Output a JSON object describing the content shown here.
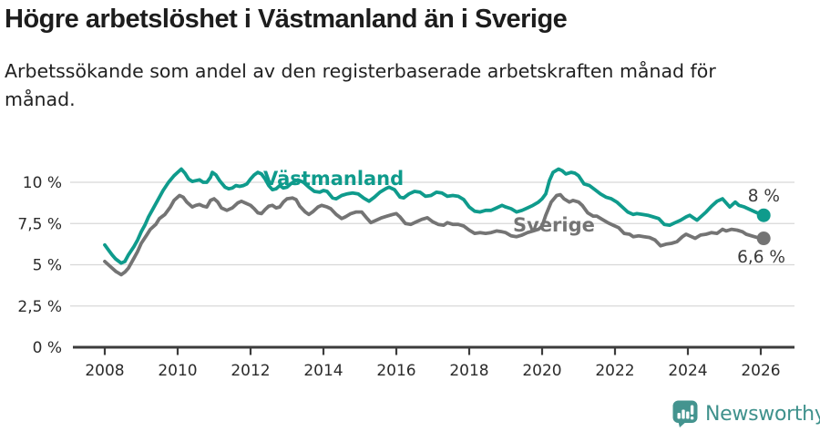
{
  "header": {
    "title": "Högre arbetslöshet i Västmanland än i Sverige",
    "subtitle": "Arbetssökande som andel av den registerbaserade arbetskraften månad för månad."
  },
  "chart_data": {
    "type": "line",
    "title": "Högre arbetslöshet i Västmanland än i Sverige",
    "subtitle": "Arbetssökande som andel av den registerbaserade arbetskraften månad för månad.",
    "unit": "%",
    "x_axis": {
      "ticks": [
        2008,
        2010,
        2012,
        2014,
        2016,
        2018,
        2020,
        2022,
        2024,
        2026
      ],
      "range": [
        2007.05,
        2026.9
      ]
    },
    "y_axis": {
      "ticks": [
        0,
        2.5,
        5,
        7.5,
        10
      ],
      "tick_labels": [
        "0 %",
        "2,5 %",
        "5 %",
        "7,5 %",
        "10 %"
      ],
      "range": [
        0,
        11.3
      ],
      "grid": true
    },
    "colors": {
      "grid": "#d8d8d8",
      "axis": "#3c3c3c",
      "tick_text": "#2b2b2b",
      "end_label_text": "#3a3a3a"
    },
    "series": [
      {
        "name": "Västmanland",
        "color": "#0f9b8c",
        "end_label": "8 %",
        "last_value": 8.0,
        "points": [
          [
            2008.0,
            6.2
          ],
          [
            2008.1,
            5.9
          ],
          [
            2008.2,
            5.6
          ],
          [
            2008.3,
            5.35
          ],
          [
            2008.45,
            5.1
          ],
          [
            2008.55,
            5.2
          ],
          [
            2008.65,
            5.6
          ],
          [
            2008.8,
            6.1
          ],
          [
            2008.9,
            6.5
          ],
          [
            2009.0,
            7.0
          ],
          [
            2009.1,
            7.4
          ],
          [
            2009.2,
            7.9
          ],
          [
            2009.3,
            8.3
          ],
          [
            2009.45,
            8.9
          ],
          [
            2009.6,
            9.5
          ],
          [
            2009.75,
            10.0
          ],
          [
            2009.9,
            10.4
          ],
          [
            2010.0,
            10.6
          ],
          [
            2010.1,
            10.8
          ],
          [
            2010.2,
            10.55
          ],
          [
            2010.3,
            10.2
          ],
          [
            2010.4,
            10.05
          ],
          [
            2010.5,
            10.1
          ],
          [
            2010.6,
            10.15
          ],
          [
            2010.7,
            10.0
          ],
          [
            2010.8,
            10.0
          ],
          [
            2010.9,
            10.3
          ],
          [
            2010.95,
            10.6
          ],
          [
            2011.05,
            10.45
          ],
          [
            2011.15,
            10.1
          ],
          [
            2011.3,
            9.7
          ],
          [
            2011.4,
            9.6
          ],
          [
            2011.5,
            9.65
          ],
          [
            2011.6,
            9.8
          ],
          [
            2011.7,
            9.75
          ],
          [
            2011.8,
            9.8
          ],
          [
            2011.9,
            9.9
          ],
          [
            2012.0,
            10.2
          ],
          [
            2012.1,
            10.45
          ],
          [
            2012.2,
            10.6
          ],
          [
            2012.3,
            10.5
          ],
          [
            2012.4,
            10.2
          ],
          [
            2012.5,
            9.8
          ],
          [
            2012.6,
            9.55
          ],
          [
            2012.7,
            9.6
          ],
          [
            2012.8,
            9.8
          ],
          [
            2012.9,
            9.65
          ],
          [
            2013.0,
            9.7
          ],
          [
            2013.1,
            9.9
          ],
          [
            2013.2,
            10.05
          ],
          [
            2013.3,
            10.15
          ],
          [
            2013.45,
            10.0
          ],
          [
            2013.6,
            9.7
          ],
          [
            2013.75,
            9.45
          ],
          [
            2013.9,
            9.4
          ],
          [
            2014.0,
            9.5
          ],
          [
            2014.1,
            9.45
          ],
          [
            2014.25,
            9.05
          ],
          [
            2014.35,
            9.0
          ],
          [
            2014.5,
            9.2
          ],
          [
            2014.65,
            9.3
          ],
          [
            2014.8,
            9.35
          ],
          [
            2014.95,
            9.3
          ],
          [
            2015.1,
            9.05
          ],
          [
            2015.25,
            8.85
          ],
          [
            2015.4,
            9.1
          ],
          [
            2015.55,
            9.4
          ],
          [
            2015.7,
            9.6
          ],
          [
            2015.8,
            9.7
          ],
          [
            2015.95,
            9.55
          ],
          [
            2016.1,
            9.1
          ],
          [
            2016.2,
            9.05
          ],
          [
            2016.35,
            9.3
          ],
          [
            2016.5,
            9.45
          ],
          [
            2016.65,
            9.4
          ],
          [
            2016.8,
            9.15
          ],
          [
            2016.95,
            9.2
          ],
          [
            2017.1,
            9.4
          ],
          [
            2017.25,
            9.35
          ],
          [
            2017.4,
            9.15
          ],
          [
            2017.55,
            9.2
          ],
          [
            2017.7,
            9.15
          ],
          [
            2017.85,
            8.95
          ],
          [
            2018.0,
            8.5
          ],
          [
            2018.15,
            8.25
          ],
          [
            2018.3,
            8.2
          ],
          [
            2018.45,
            8.3
          ],
          [
            2018.6,
            8.3
          ],
          [
            2018.75,
            8.45
          ],
          [
            2018.9,
            8.6
          ],
          [
            2019.0,
            8.5
          ],
          [
            2019.15,
            8.4
          ],
          [
            2019.3,
            8.2
          ],
          [
            2019.45,
            8.3
          ],
          [
            2019.6,
            8.45
          ],
          [
            2019.75,
            8.6
          ],
          [
            2019.9,
            8.8
          ],
          [
            2020.0,
            9.0
          ],
          [
            2020.1,
            9.3
          ],
          [
            2020.2,
            10.1
          ],
          [
            2020.3,
            10.6
          ],
          [
            2020.45,
            10.8
          ],
          [
            2020.55,
            10.7
          ],
          [
            2020.65,
            10.5
          ],
          [
            2020.8,
            10.6
          ],
          [
            2020.9,
            10.55
          ],
          [
            2021.0,
            10.4
          ],
          [
            2021.15,
            9.9
          ],
          [
            2021.3,
            9.8
          ],
          [
            2021.45,
            9.55
          ],
          [
            2021.6,
            9.3
          ],
          [
            2021.75,
            9.1
          ],
          [
            2021.9,
            9.0
          ],
          [
            2022.05,
            8.8
          ],
          [
            2022.2,
            8.5
          ],
          [
            2022.35,
            8.2
          ],
          [
            2022.5,
            8.05
          ],
          [
            2022.6,
            8.1
          ],
          [
            2022.75,
            8.05
          ],
          [
            2022.9,
            8.0
          ],
          [
            2023.05,
            7.9
          ],
          [
            2023.2,
            7.8
          ],
          [
            2023.35,
            7.45
          ],
          [
            2023.5,
            7.4
          ],
          [
            2023.65,
            7.55
          ],
          [
            2023.8,
            7.7
          ],
          [
            2023.95,
            7.9
          ],
          [
            2024.05,
            8.0
          ],
          [
            2024.15,
            7.85
          ],
          [
            2024.25,
            7.7
          ],
          [
            2024.35,
            7.9
          ],
          [
            2024.5,
            8.2
          ],
          [
            2024.65,
            8.55
          ],
          [
            2024.8,
            8.85
          ],
          [
            2024.95,
            9.0
          ],
          [
            2025.05,
            8.75
          ],
          [
            2025.15,
            8.5
          ],
          [
            2025.3,
            8.8
          ],
          [
            2025.4,
            8.6
          ],
          [
            2025.55,
            8.5
          ],
          [
            2025.7,
            8.35
          ],
          [
            2025.85,
            8.2
          ],
          [
            2025.95,
            8.1
          ],
          [
            2026.08,
            8.0
          ]
        ]
      },
      {
        "name": "Sverige",
        "color": "#747474",
        "end_label": "6,6 %",
        "last_value": 6.6,
        "points": [
          [
            2008.0,
            5.2
          ],
          [
            2008.1,
            5.0
          ],
          [
            2008.2,
            4.8
          ],
          [
            2008.3,
            4.6
          ],
          [
            2008.45,
            4.4
          ],
          [
            2008.55,
            4.55
          ],
          [
            2008.65,
            4.8
          ],
          [
            2008.8,
            5.4
          ],
          [
            2008.9,
            5.8
          ],
          [
            2009.0,
            6.3
          ],
          [
            2009.15,
            6.8
          ],
          [
            2009.25,
            7.15
          ],
          [
            2009.4,
            7.45
          ],
          [
            2009.5,
            7.8
          ],
          [
            2009.65,
            8.05
          ],
          [
            2009.8,
            8.5
          ],
          [
            2009.9,
            8.9
          ],
          [
            2010.0,
            9.1
          ],
          [
            2010.05,
            9.2
          ],
          [
            2010.15,
            9.1
          ],
          [
            2010.25,
            8.8
          ],
          [
            2010.4,
            8.5
          ],
          [
            2010.5,
            8.6
          ],
          [
            2010.6,
            8.65
          ],
          [
            2010.7,
            8.55
          ],
          [
            2010.8,
            8.5
          ],
          [
            2010.9,
            8.9
          ],
          [
            2011.0,
            9.0
          ],
          [
            2011.1,
            8.8
          ],
          [
            2011.2,
            8.45
          ],
          [
            2011.35,
            8.3
          ],
          [
            2011.5,
            8.45
          ],
          [
            2011.65,
            8.75
          ],
          [
            2011.75,
            8.85
          ],
          [
            2011.85,
            8.75
          ],
          [
            2012.0,
            8.6
          ],
          [
            2012.1,
            8.4
          ],
          [
            2012.2,
            8.15
          ],
          [
            2012.3,
            8.1
          ],
          [
            2012.4,
            8.35
          ],
          [
            2012.5,
            8.55
          ],
          [
            2012.6,
            8.6
          ],
          [
            2012.7,
            8.45
          ],
          [
            2012.8,
            8.5
          ],
          [
            2012.9,
            8.8
          ],
          [
            2013.0,
            9.0
          ],
          [
            2013.15,
            9.05
          ],
          [
            2013.25,
            8.95
          ],
          [
            2013.35,
            8.55
          ],
          [
            2013.5,
            8.2
          ],
          [
            2013.6,
            8.05
          ],
          [
            2013.7,
            8.2
          ],
          [
            2013.85,
            8.5
          ],
          [
            2013.95,
            8.6
          ],
          [
            2014.1,
            8.5
          ],
          [
            2014.2,
            8.4
          ],
          [
            2014.35,
            8.05
          ],
          [
            2014.5,
            7.8
          ],
          [
            2014.6,
            7.9
          ],
          [
            2014.75,
            8.1
          ],
          [
            2014.9,
            8.2
          ],
          [
            2015.05,
            8.2
          ],
          [
            2015.2,
            7.8
          ],
          [
            2015.3,
            7.55
          ],
          [
            2015.45,
            7.7
          ],
          [
            2015.6,
            7.85
          ],
          [
            2015.75,
            7.95
          ],
          [
            2015.9,
            8.05
          ],
          [
            2016.0,
            8.1
          ],
          [
            2016.1,
            7.9
          ],
          [
            2016.25,
            7.5
          ],
          [
            2016.4,
            7.45
          ],
          [
            2016.55,
            7.6
          ],
          [
            2016.7,
            7.75
          ],
          [
            2016.85,
            7.85
          ],
          [
            2017.0,
            7.6
          ],
          [
            2017.15,
            7.45
          ],
          [
            2017.3,
            7.4
          ],
          [
            2017.4,
            7.55
          ],
          [
            2017.55,
            7.45
          ],
          [
            2017.7,
            7.45
          ],
          [
            2017.85,
            7.35
          ],
          [
            2018.0,
            7.1
          ],
          [
            2018.15,
            6.9
          ],
          [
            2018.3,
            6.95
          ],
          [
            2018.45,
            6.9
          ],
          [
            2018.6,
            6.95
          ],
          [
            2018.75,
            7.05
          ],
          [
            2018.9,
            7.0
          ],
          [
            2019.0,
            6.95
          ],
          [
            2019.15,
            6.75
          ],
          [
            2019.3,
            6.7
          ],
          [
            2019.45,
            6.8
          ],
          [
            2019.6,
            6.95
          ],
          [
            2019.75,
            7.05
          ],
          [
            2019.9,
            7.15
          ],
          [
            2020.0,
            7.35
          ],
          [
            2020.1,
            8.0
          ],
          [
            2020.25,
            8.8
          ],
          [
            2020.4,
            9.2
          ],
          [
            2020.5,
            9.25
          ],
          [
            2020.6,
            9.0
          ],
          [
            2020.75,
            8.8
          ],
          [
            2020.85,
            8.9
          ],
          [
            2021.0,
            8.8
          ],
          [
            2021.1,
            8.6
          ],
          [
            2021.25,
            8.15
          ],
          [
            2021.4,
            7.95
          ],
          [
            2021.5,
            7.95
          ],
          [
            2021.65,
            7.75
          ],
          [
            2021.8,
            7.55
          ],
          [
            2021.95,
            7.4
          ],
          [
            2022.1,
            7.25
          ],
          [
            2022.25,
            6.9
          ],
          [
            2022.4,
            6.85
          ],
          [
            2022.5,
            6.7
          ],
          [
            2022.65,
            6.75
          ],
          [
            2022.8,
            6.7
          ],
          [
            2022.95,
            6.65
          ],
          [
            2023.1,
            6.5
          ],
          [
            2023.25,
            6.15
          ],
          [
            2023.4,
            6.25
          ],
          [
            2023.55,
            6.3
          ],
          [
            2023.7,
            6.4
          ],
          [
            2023.85,
            6.7
          ],
          [
            2023.95,
            6.85
          ],
          [
            2024.1,
            6.7
          ],
          [
            2024.2,
            6.6
          ],
          [
            2024.35,
            6.8
          ],
          [
            2024.5,
            6.85
          ],
          [
            2024.65,
            6.95
          ],
          [
            2024.8,
            6.9
          ],
          [
            2024.95,
            7.15
          ],
          [
            2025.05,
            7.05
          ],
          [
            2025.2,
            7.15
          ],
          [
            2025.35,
            7.1
          ],
          [
            2025.5,
            7.0
          ],
          [
            2025.6,
            6.85
          ],
          [
            2025.75,
            6.75
          ],
          [
            2025.9,
            6.65
          ],
          [
            2026.08,
            6.6
          ]
        ]
      }
    ],
    "legend_position": "inline-labels"
  },
  "branding": {
    "name": "Newsworthy",
    "color": "#3f918c",
    "icon": "newsworthy-speech-bubble-bar-chart"
  }
}
